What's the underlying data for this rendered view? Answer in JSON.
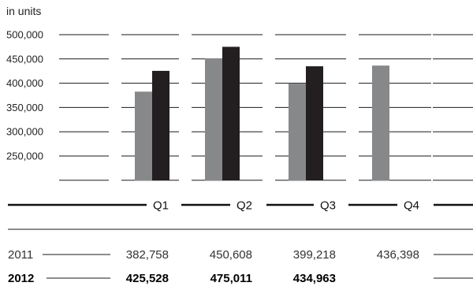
{
  "chart_data": {
    "type": "bar",
    "unit_label": "in units",
    "categories": [
      "Q1",
      "Q2",
      "Q3",
      "Q4"
    ],
    "y_ticks": [
      "500,000",
      "450,000",
      "400,000",
      "350,000",
      "300,000",
      "250,000"
    ],
    "ylim": [
      200000,
      500000
    ],
    "series": [
      {
        "name": "2011",
        "color": "#87888a",
        "values": [
          382758,
          450608,
          399218,
          436398
        ],
        "labels": [
          "382,758",
          "450,608",
          "399,218",
          "436,398"
        ]
      },
      {
        "name": "2012",
        "color": "#231f20",
        "values": [
          425528,
          475011,
          434963,
          null
        ],
        "labels": [
          "425,528",
          "475,011",
          "434,963",
          ""
        ]
      }
    ]
  }
}
